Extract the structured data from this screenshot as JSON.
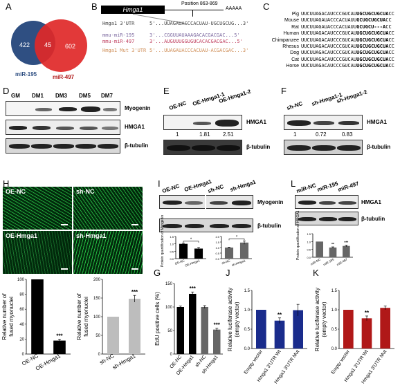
{
  "panels": {
    "A": "A",
    "B": "B",
    "C": "C",
    "D": "D",
    "E": "E",
    "F": "F",
    "G": "G",
    "H": "H",
    "I": "I",
    "J": "J",
    "K": "K",
    "L": "L"
  },
  "venn": {
    "left_count": "422",
    "overlap_count": "45",
    "right_count": "602",
    "left_label": "miR-195",
    "right_label": "miR-497",
    "left_color": "#2f4f82",
    "right_color": "#e02828"
  },
  "panelB": {
    "gene": "Hmga1",
    "position": "Position 863-869",
    "polyA": "AAAAA",
    "rows": [
      {
        "name": "Hmga1 3'UTR",
        "seq": "5'...UUAGAUACCCACUAU-UGCUGCUG...3'",
        "color": "#444"
      },
      {
        "name": "mmu-miR-195",
        "seq": "3'...CGGUUAUAAAGACACGACGAC...5'",
        "color": "#7d6aa0"
      },
      {
        "name": "mmu-miR-497",
        "seq": "3'...AUGUUUGGUGUCACACGACGAC...5'",
        "color": "#c04060"
      },
      {
        "name": "Hmga1 Mut 3'UTR",
        "seq": "5'...UUAGAUACCCACUAU-ACGACGAC...3'",
        "color": "#d0905a"
      }
    ]
  },
  "panelC": {
    "rows": [
      {
        "species": "Pig",
        "seq": "UUCUUAGACAUCCCGUCAUUGCUGCUGCUA",
        "tail": "CC"
      },
      {
        "species": "Mouse",
        "seq": "UUCUUAGAUACCCACUAUUGCUGCUGCUA",
        "tail": "CC"
      },
      {
        "species": "Rat",
        "seq": "UUCUUAGAUACCCACUAUUGCUGCU---A",
        "tail": "CC"
      },
      {
        "species": "Human",
        "seq": "UUCUUAGACAUCCCGUCAUUGCUGCUGCUA",
        "tail": "CC"
      },
      {
        "species": "Chimpanzee",
        "seq": "UUCUUAGACAUCCCGUCAUUGCUGCUGCUA",
        "tail": "CC"
      },
      {
        "species": "Rhesus",
        "seq": "UUCUUAGACAUCCCGUCAUUGCUGCUGCUA",
        "tail": "CC"
      },
      {
        "species": "Dog",
        "seq": "UUCUUAGACAUCCCGUCAUUGCUGCUGCUA",
        "tail": "CC"
      },
      {
        "species": "Cat",
        "seq": "UUCUUAGACAUCCCGUCAUUGCUGCUGCUA",
        "tail": "CC"
      },
      {
        "species": "Horse",
        "seq": "UUCUUAGACAUCCCGUCAUUGCUGCUGCUA",
        "tail": "CC"
      }
    ]
  },
  "panelD": {
    "lanes": [
      "GM",
      "DM1",
      "DM3",
      "DM5",
      "DM7"
    ],
    "rows": [
      "Myogenin",
      "HMGA1",
      "β-tubulin"
    ]
  },
  "panelE": {
    "lanes": [
      "OE-NC",
      "OE-Hmga1-1",
      "OE-Hmga1-2"
    ],
    "rows": [
      "HMGA1",
      "β-tubulin"
    ],
    "values": [
      "1",
      "1.81",
      "2.51"
    ]
  },
  "panelF": {
    "lanes": [
      "sh-NC",
      "sh-Hmga1-1",
      "sh-Hmga1-2"
    ],
    "rows": [
      "HMGA1",
      "β-tubulin"
    ],
    "values": [
      "1",
      "0.72",
      "0.83"
    ]
  },
  "panelH": {
    "images": [
      "OE-NC",
      "sh-NC",
      "OE-Hmga1",
      "sh-Hmga1"
    ]
  },
  "panelI": {
    "lanes": [
      "OE-NC",
      "OE-Hmga1",
      "sh-NC",
      "sh-Hmga1"
    ],
    "rows": [
      "Myogenin",
      "β-tubulin"
    ],
    "ylabel": "Protein quantification of Myogenin"
  },
  "panelL": {
    "lanes": [
      "miR-NC",
      "miR-195",
      "miR-497"
    ],
    "rows": [
      "HMGA1",
      "β-tubulin"
    ],
    "ylabel": "Protein quantification of HMGA1"
  },
  "chart_data": [
    {
      "id": "H1",
      "type": "bar",
      "categories": [
        "OE-NC",
        "OE-Hmga1"
      ],
      "values": [
        100,
        18
      ],
      "errors": [
        0,
        2
      ],
      "colors": [
        "#000000",
        "#000000"
      ],
      "sig": [
        "",
        "***"
      ],
      "ylim": [
        0,
        100
      ],
      "yticks": [
        0,
        20,
        40,
        60,
        80,
        100
      ],
      "ylabel": "Relative number of fused myonuclei"
    },
    {
      "id": "H2",
      "type": "bar",
      "categories": [
        "sh-NC",
        "sh-Hmga1"
      ],
      "values": [
        100,
        148
      ],
      "errors": [
        0,
        9
      ],
      "colors": [
        "#bdbdbd",
        "#bdbdbd"
      ],
      "sig": [
        "",
        "***"
      ],
      "ylim": [
        0,
        200
      ],
      "yticks": [
        0,
        50,
        100,
        150,
        200
      ],
      "ylabel": "Relative number of fused myonuclei"
    },
    {
      "id": "G",
      "type": "bar",
      "categories": [
        "OE-NC",
        "OE-Hmga1",
        "sh-NC",
        "sh-Hmga1"
      ],
      "values": [
        100,
        128,
        100,
        52
      ],
      "errors": [
        2,
        4,
        3,
        3
      ],
      "colors": [
        "#000000",
        "#000000",
        "#666666",
        "#666666"
      ],
      "sig": [
        "",
        "***",
        "",
        "***"
      ],
      "ylim": [
        0,
        150
      ],
      "yticks": [
        0,
        50,
        100,
        150
      ],
      "ylabel": "EdU positive cells (%)"
    },
    {
      "id": "J",
      "type": "bar",
      "categories": [
        "Empty vector",
        "Hmga1 3'UTR Wt",
        "Hmga1 3'UTR Mut"
      ],
      "values": [
        1.0,
        0.72,
        0.99
      ],
      "errors": [
        0,
        0.07,
        0.15
      ],
      "colors": [
        "#1a2c8c",
        "#1a2c8c",
        "#1a2c8c"
      ],
      "sig": [
        "",
        "**",
        ""
      ],
      "ylim": [
        0,
        1.5
      ],
      "yticks": [
        0.0,
        0.5,
        1.0,
        1.5
      ],
      "ylabel": "Relative luciferase activity (empty vector)"
    },
    {
      "id": "K",
      "type": "bar",
      "categories": [
        "Empty vector",
        "Hmga1 3'UTR Wt",
        "Hmga1 3'UTR Mut"
      ],
      "values": [
        1.0,
        0.78,
        1.05
      ],
      "errors": [
        0,
        0.06,
        0.05
      ],
      "colors": [
        "#b01818",
        "#b01818",
        "#b01818"
      ],
      "sig": [
        "",
        "**",
        ""
      ],
      "ylim": [
        0,
        1.5
      ],
      "yticks": [
        0.0,
        0.5,
        1.0,
        1.5
      ],
      "ylabel": "Relative luciferase activity (empty vector)"
    },
    {
      "id": "I1",
      "type": "bar",
      "categories": [
        "OE-NC",
        "OE-Hmga1"
      ],
      "values": [
        1.0,
        0.68
      ],
      "errors": [
        0.04,
        0.08
      ],
      "colors": [
        "#000000",
        "#000000"
      ],
      "sig": [
        "*"
      ],
      "ylim": [
        0,
        1.5
      ],
      "yticks": [
        0.0,
        0.5,
        1.0,
        1.5
      ],
      "ylabel": ""
    },
    {
      "id": "I2",
      "type": "bar",
      "categories": [
        "sh-NC",
        "sh-Hmga1"
      ],
      "values": [
        1.0,
        1.45
      ],
      "errors": [
        0.04,
        0.15
      ],
      "colors": [
        "#666666",
        "#666666"
      ],
      "sig": [
        "*"
      ],
      "ylim": [
        0,
        2.0
      ],
      "yticks": [
        0.0,
        0.5,
        1.0,
        1.5,
        2.0
      ],
      "ylabel": ""
    },
    {
      "id": "L",
      "type": "bar",
      "categories": [
        "miR-NC",
        "miR-195",
        "miR-497"
      ],
      "values": [
        1.0,
        0.62,
        0.72
      ],
      "errors": [
        0,
        0.04,
        0.05
      ],
      "colors": [
        "#666666",
        "#666666",
        "#666666"
      ],
      "sig": [
        "",
        "**",
        "***"
      ],
      "ylim": [
        0,
        1.5
      ],
      "yticks": [
        0.0,
        0.5,
        1.0,
        1.5
      ],
      "ylabel": ""
    }
  ]
}
